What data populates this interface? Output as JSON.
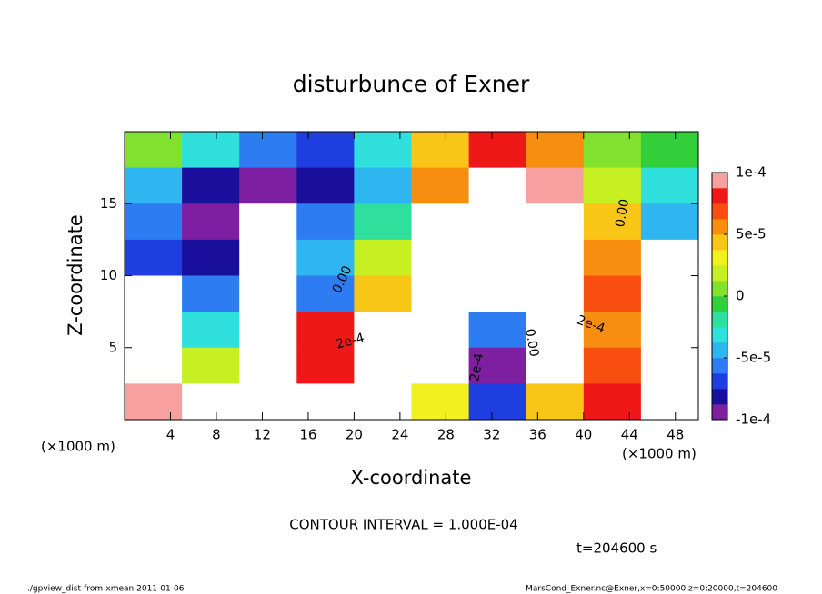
{
  "chart_data": {
    "type": "heatmap",
    "title": "disturbunce of Exner",
    "xlabel": "X-coordinate",
    "ylabel": "Z-coordinate",
    "x_unit": "(×1000 m)",
    "y_unit": "(×1000 m)",
    "xlim": [
      0,
      50
    ],
    "ylim": [
      0,
      20
    ],
    "xticks": [
      4,
      8,
      12,
      16,
      20,
      24,
      28,
      32,
      36,
      40,
      44,
      48
    ],
    "yticks": [
      5,
      10,
      15
    ],
    "x": [
      2.5,
      7.5,
      12.5,
      17.5,
      22.5,
      27.5,
      32.5,
      37.5,
      42.5,
      47.5
    ],
    "y": [
      18.75,
      16.25,
      13.75,
      11.25,
      8.75,
      6.25,
      3.75,
      1.25
    ],
    "z": [
      [
        0,
        -3e-05,
        -6e-05,
        -7e-05,
        -3e-05,
        4e-05,
        8e-05,
        6e-05,
        1e-05,
        -1e-05
      ],
      [
        -4e-05,
        -8e-05,
        -9e-05,
        -8e-05,
        -4e-05,
        5e-05,
        0.00015,
        9e-05,
        2e-05,
        -3e-05
      ],
      [
        -6e-05,
        -9e-05,
        0.00015,
        -6e-05,
        -2e-05,
        0.00015,
        0.00015,
        0.00015,
        4e-05,
        -4e-05
      ],
      [
        -7e-05,
        -8e-05,
        0.00015,
        -4e-05,
        2e-05,
        0.00015,
        0.00015,
        0.00015,
        5e-05,
        0.00015
      ],
      [
        0.00015,
        -6e-05,
        0.00015,
        -6e-05,
        4e-05,
        0.00015,
        0.00015,
        0.00015,
        7e-05,
        0.00015
      ],
      [
        0.00015,
        -3e-05,
        0.00015,
        8e-05,
        0.00015,
        0.00015,
        -6e-05,
        0.00015,
        6e-05,
        0.00015
      ],
      [
        0.00015,
        2e-05,
        0.00015,
        8e-05,
        0.00015,
        0.00015,
        -9e-05,
        0.00015,
        7e-05,
        0.00015
      ],
      [
        0.0001,
        0.00015,
        0.00015,
        0.00015,
        0.00015,
        3e-05,
        -7e-05,
        4e-05,
        8e-05,
        0.00015
      ]
    ],
    "colorbar": {
      "lim": [
        -0.0001,
        0.0001
      ],
      "ticks": [
        {
          "value": 0.0001,
          "label": "1e-4"
        },
        {
          "value": 5e-05,
          "label": "5e-5"
        },
        0,
        {
          "value": -5e-05,
          "label": "-5e-5"
        },
        {
          "value": -0.0001,
          "label": "-1e-4"
        }
      ],
      "colors": [
        "#7d1fa0",
        "#1a0f9c",
        "#1f3ee0",
        "#2d7cf2",
        "#2fb6f0",
        "#2fe0dc",
        "#2fdf9c",
        "#32cf3a",
        "#82e02e",
        "#c6f022",
        "#f2f01e",
        "#f8c616",
        "#f88e10",
        "#f84e10",
        "#ee1818",
        "#f8a0a0"
      ]
    },
    "contour_labels": [
      "0.00",
      "0.00",
      "0.00",
      "2e-4",
      "2e-4",
      "2e-4"
    ],
    "contour_interval": "CONTOUR INTERVAL = 1.000E-04",
    "time": "t=204600 s",
    "footer_left": "./gpview_dist-from-xmean  2011-01-06",
    "footer_right": "MarsCond_Exner.nc@Exner,x=0:50000,z=0:20000,t=204600"
  }
}
